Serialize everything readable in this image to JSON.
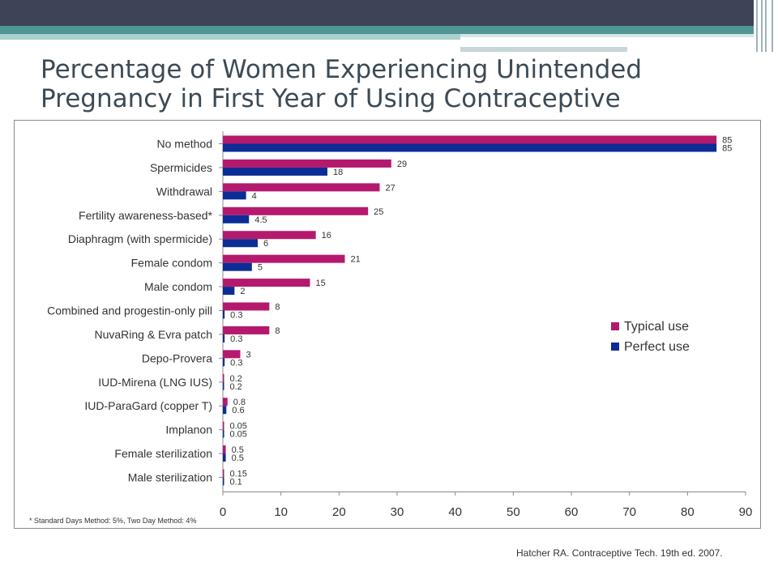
{
  "title": "Percentage of Women Experiencing Unintended Pregnancy in First Year of Using Contraceptive",
  "footnote": "* Standard Days Method: 5%, Two Day Method: 4%",
  "source": "Hatcher RA. Contraceptive Tech. 19th ed. 2007.",
  "colors": {
    "typical": "#b5196e",
    "perfect": "#0c2d96",
    "header": "#3f4357",
    "teal": "#4f9596"
  },
  "chart_data": {
    "type": "bar",
    "orientation": "horizontal",
    "title": "",
    "xlabel": "",
    "ylabel": "",
    "xlim": [
      0,
      90
    ],
    "xticks": [
      "0",
      "10",
      "20",
      "30",
      "40",
      "50",
      "60",
      "70",
      "80",
      "90"
    ],
    "categories": [
      "No method",
      "Spermicides",
      "Withdrawal",
      "Fertility awareness-based*",
      "Diaphragm (with spermicide)",
      "Female condom",
      "Male condom",
      "Combined and progestin-only pill",
      "NuvaRing & Evra patch",
      "Depo-Provera",
      "IUD-Mirena (LNG IUS)",
      "IUD-ParaGard (copper T)",
      "Implanon",
      "Female sterilization",
      "Male sterilization"
    ],
    "series": [
      {
        "name": "Typical use",
        "values": [
          85,
          29,
          27,
          25,
          16,
          21,
          15,
          8,
          8,
          3,
          0.2,
          0.8,
          0.05,
          0.5,
          0.15
        ],
        "labels": [
          "85",
          "29",
          "27",
          "25",
          "16",
          "21",
          "15",
          "8",
          "8",
          "3",
          "0.2",
          "0.8",
          "0.05",
          "0.5",
          "0.15"
        ]
      },
      {
        "name": "Perfect use",
        "values": [
          85,
          18,
          4,
          4.5,
          6,
          5,
          2,
          0.3,
          0.3,
          0.3,
          0.2,
          0.6,
          0.05,
          0.5,
          0.1
        ],
        "labels": [
          "85",
          "18",
          "4",
          "4.5",
          "6",
          "5",
          "2",
          "0.3",
          "0.3",
          "0.3",
          "0.2",
          "0.6",
          "0.05",
          "0.5",
          "0.1"
        ]
      }
    ],
    "legend": {
      "position": "right",
      "entries": [
        "Typical use",
        "Perfect use"
      ]
    },
    "grid": false
  }
}
